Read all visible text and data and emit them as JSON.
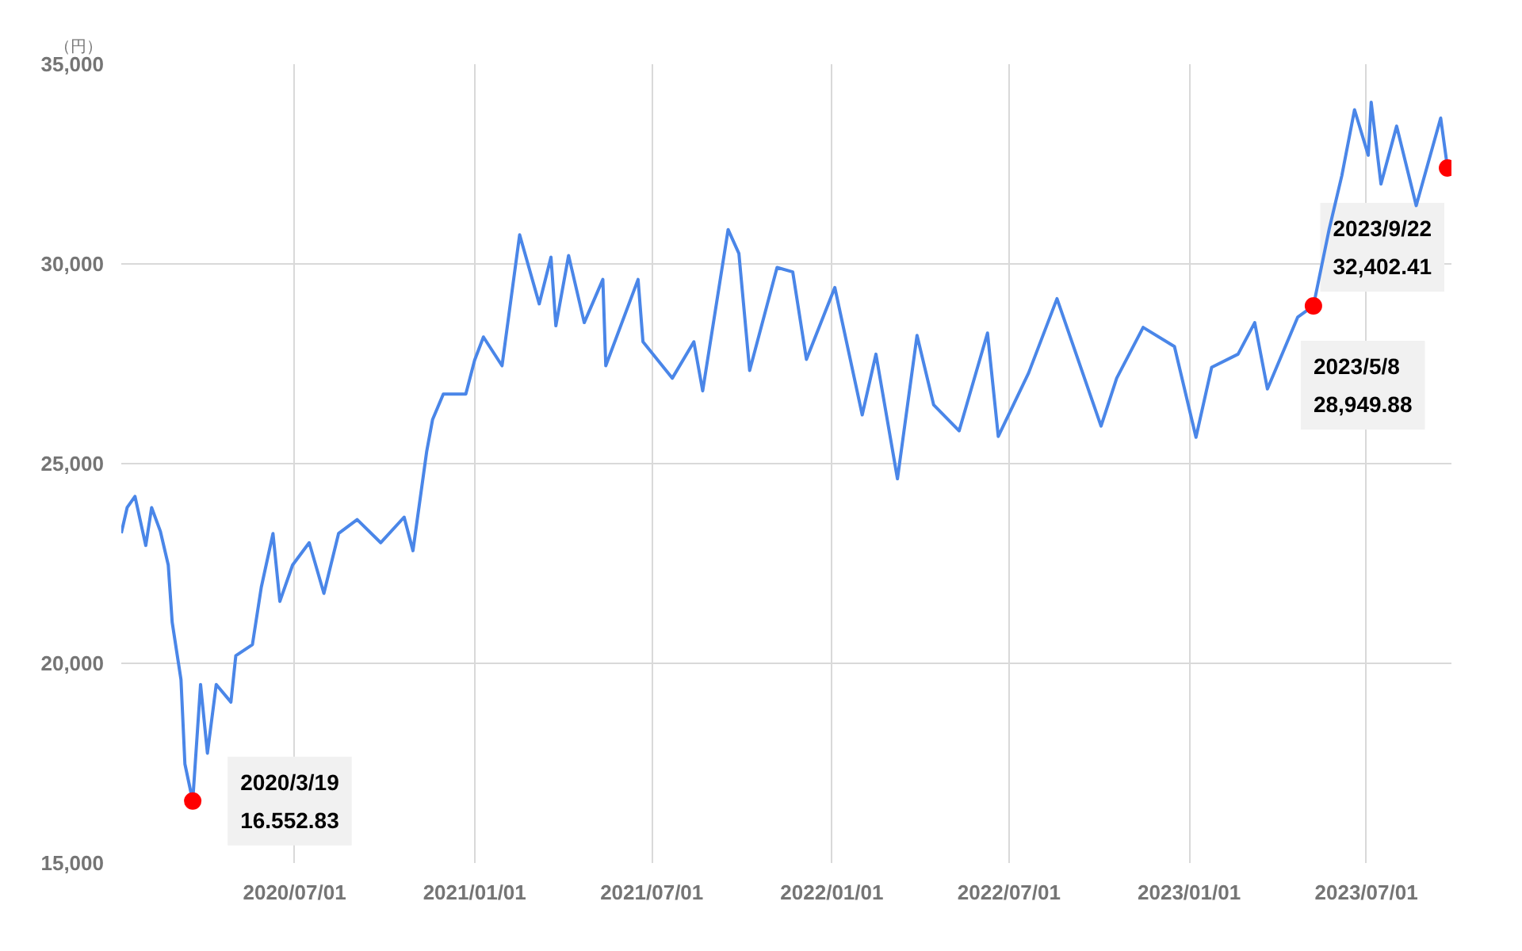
{
  "chart_data": {
    "type": "line",
    "ylabel": "（円）",
    "xlim": [
      "2020-01-06",
      "2023-09-26"
    ],
    "ylim": [
      15000,
      35000
    ],
    "xticks": [
      {
        "value": "2020-07-01",
        "label": "2020/07/01"
      },
      {
        "value": "2021-01-01",
        "label": "2021/01/01"
      },
      {
        "value": "2021-07-01",
        "label": "2021/07/01"
      },
      {
        "value": "2022-01-01",
        "label": "2022/01/01"
      },
      {
        "value": "2022-07-01",
        "label": "2022/07/01"
      },
      {
        "value": "2023-01-01",
        "label": "2023/01/01"
      },
      {
        "value": "2023-07-01",
        "label": "2023/07/01"
      }
    ],
    "yticks": [
      {
        "value": 15000,
        "label": "15,000"
      },
      {
        "value": 20000,
        "label": "20,000"
      },
      {
        "value": 25000,
        "label": "25,000"
      },
      {
        "value": 30000,
        "label": "30,000"
      },
      {
        "value": 35000,
        "label": "35,000"
      }
    ],
    "grid": true,
    "marker": "none",
    "line_style": "solid",
    "series": [
      {
        "color": "#4a86e8",
        "x": [
          "2020-01-06",
          "2020-01-12",
          "2020-01-20",
          "2020-01-31",
          "2020-02-06",
          "2020-02-15",
          "2020-02-23",
          "2020-02-27",
          "2020-03-07",
          "2020-03-11",
          "2020-03-19",
          "2020-03-27",
          "2020-04-03",
          "2020-04-12",
          "2020-04-27",
          "2020-05-02",
          "2020-05-19",
          "2020-05-28",
          "2020-06-09",
          "2020-06-16",
          "2020-06-29",
          "2020-07-16",
          "2020-07-31",
          "2020-08-15",
          "2020-09-03",
          "2020-09-27",
          "2020-10-21",
          "2020-10-30",
          "2020-11-13",
          "2020-11-19",
          "2020-11-30",
          "2020-12-23",
          "2021-01-01",
          "2021-01-10",
          "2021-01-29",
          "2021-02-16",
          "2021-03-08",
          "2021-03-20",
          "2021-03-25",
          "2021-04-07",
          "2021-04-23",
          "2021-05-12",
          "2021-05-15",
          "2021-06-17",
          "2021-06-22",
          "2021-07-22",
          "2021-08-13",
          "2021-08-22",
          "2021-09-17",
          "2021-09-28",
          "2021-10-09",
          "2021-11-06",
          "2021-11-22",
          "2021-12-06",
          "2022-01-04",
          "2022-02-01",
          "2022-02-15",
          "2022-03-09",
          "2022-03-29",
          "2022-04-15",
          "2022-05-11",
          "2022-06-09",
          "2022-06-20",
          "2022-07-21",
          "2022-08-19",
          "2022-10-03",
          "2022-10-19",
          "2022-11-15",
          "2022-12-17",
          "2023-01-08",
          "2023-01-24",
          "2023-02-20",
          "2023-03-09",
          "2023-03-22",
          "2023-04-22",
          "2023-05-08",
          "2023-05-24",
          "2023-06-06",
          "2023-06-19",
          "2023-07-03",
          "2023-07-06",
          "2023-07-16",
          "2023-08-01",
          "2023-08-21",
          "2023-09-15",
          "2023-09-22"
        ],
        "values": [
          23260,
          23900,
          24180,
          22950,
          23900,
          23300,
          22460,
          21030,
          19590,
          17480,
          16552.83,
          19470,
          17750,
          19470,
          19030,
          20190,
          20470,
          21900,
          23250,
          21550,
          22460,
          23020,
          21750,
          23250,
          23600,
          23020,
          23660,
          22820,
          25300,
          26100,
          26740,
          26740,
          27590,
          28170,
          27450,
          30730,
          29000,
          30170,
          28450,
          30210,
          28530,
          29610,
          27450,
          29610,
          28050,
          27140,
          28050,
          26820,
          30860,
          30260,
          27330,
          29910,
          29800,
          27610,
          29410,
          26220,
          27740,
          24620,
          28210,
          26470,
          25820,
          28270,
          25680,
          27270,
          29130,
          25940,
          27140,
          28410,
          27930,
          25660,
          27410,
          27740,
          28530,
          26870,
          28670,
          28949.88,
          30860,
          32210,
          33860,
          32720,
          34050,
          32000,
          33450,
          31460,
          33650,
          32402.41
        ]
      },
      {
        "type": "scatter",
        "color": "#ff0000",
        "marker": "circle",
        "x": [
          "2020-03-19",
          "2023-05-08",
          "2023-09-22"
        ],
        "values": [
          16552.83,
          28949.88,
          32402.41
        ]
      }
    ],
    "annotations": [
      {
        "text": "2020/3/19\n16.552.83",
        "x": "2020-03-19",
        "y": 16552.83
      },
      {
        "text": "2023/5/8\n28,949.88",
        "x": "2023-05-08",
        "y": 28949.88
      },
      {
        "text": "2023/9/22\n32,402.41",
        "x": "2023-09-22",
        "y": 32402.41
      }
    ]
  }
}
